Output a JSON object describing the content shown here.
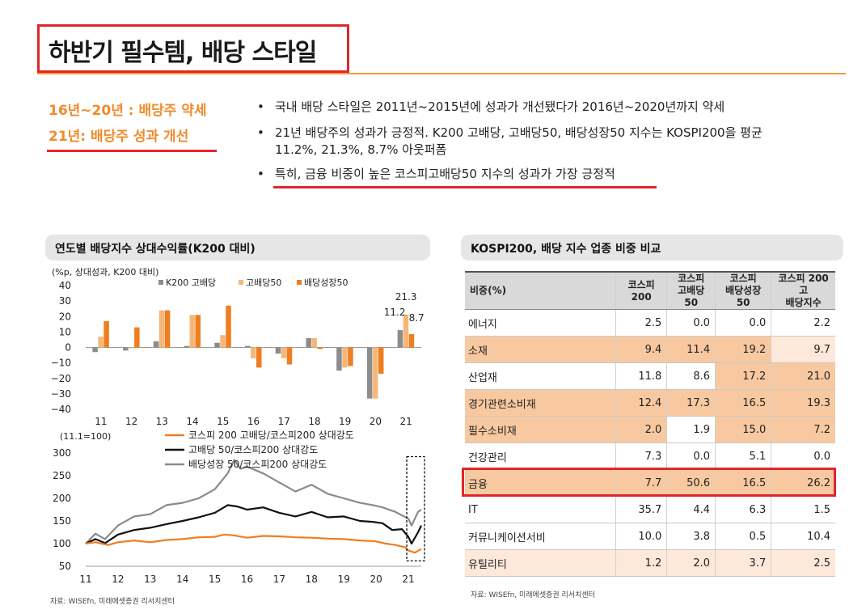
{
  "title": "하반기 필수템, 배당 스타일",
  "side": {
    "line1": "16년~20년 : 배당주 약세",
    "line2": "21년: 배당주 성과 개선"
  },
  "bullets": [
    {
      "text": "국내 배당 스타일은 2011년~2015년에 성과가 개선됐다가 2016년~2020년까지 약세"
    },
    {
      "text": "21년 배당주의 성과가 긍정적. K200 고배당, 고배당50, 배당성장50 지수는 KOSPI200을 평균",
      "text2": "11.2%, 21.3%, 8.7% 아웃퍼폼"
    },
    {
      "text": "특히, 금융 비중이 높은 코스피고배당50 지수의 성과가 가장 긍정적"
    }
  ],
  "left_panel": {
    "title": "연도별 배당지수 상대수익률(K200 대비)",
    "source": "자료: WISEfn, 미래에셋증권 리서치센터"
  },
  "right_panel": {
    "title": "KOSPI200, 배당 지수 업종 비중 비교",
    "source": "자료: WISEfn, 미래에셋증권 리서치센터"
  },
  "colors": {
    "accent_orange": "#f08a2a",
    "red_highlight": "#e0262b",
    "bar_gray": "#8c8c8c",
    "bar_light_orange": "#f6b77a",
    "bar_orange": "#f07d1f",
    "line_black": "#111111",
    "line_gray": "#8a8a8a",
    "cell_orange": "#f8c9a1",
    "cell_light": "#fde8da"
  },
  "chart_data": [
    {
      "type": "bar",
      "ylabel": "(%p, 상대성과, K200 대비)",
      "ylim": [
        -40,
        40
      ],
      "yticks": [
        40,
        30,
        20,
        10,
        0,
        -10,
        -20,
        -30,
        -40
      ],
      "categories": [
        "11",
        "12",
        "13",
        "14",
        "15",
        "16",
        "17",
        "18",
        "19",
        "20",
        "21"
      ],
      "legend_placement": "top",
      "series": [
        {
          "name": "K200 고배당",
          "color": "#8c8c8c",
          "values": [
            -3,
            -2,
            4,
            1,
            3,
            1,
            -4,
            6,
            -15,
            -33,
            11.2
          ]
        },
        {
          "name": "고배당50",
          "color": "#f6b77a",
          "values": [
            7,
            0,
            24,
            21,
            8,
            -7,
            -7,
            6,
            -13,
            -33,
            21.3
          ]
        },
        {
          "name": "배당성장50",
          "color": "#f07d1f",
          "values": [
            17,
            13,
            24,
            21,
            27,
            -13,
            -11,
            -1,
            -12,
            -17,
            8.7
          ]
        }
      ],
      "annotations": [
        "21.3",
        "11.2",
        "8.7"
      ]
    },
    {
      "type": "line",
      "ylabel": "(11.1=100)",
      "ylim": [
        50,
        300
      ],
      "yticks": [
        300,
        250,
        200,
        150,
        100,
        50
      ],
      "x": [
        "11",
        "12",
        "13",
        "14",
        "15",
        "16",
        "17",
        "18",
        "19",
        "20",
        "21"
      ],
      "legend_placement": "top",
      "series": [
        {
          "name": "코스피 200 고배당/코스피200 상대강도",
          "color": "#f07d1f",
          "points": [
            [
              11.0,
              100
            ],
            [
              11.3,
              103
            ],
            [
              11.7,
              97
            ],
            [
              12.0,
              103
            ],
            [
              12.5,
              107
            ],
            [
              13.0,
              103
            ],
            [
              13.5,
              108
            ],
            [
              14.0,
              110
            ],
            [
              14.5,
              114
            ],
            [
              15.0,
              115
            ],
            [
              15.3,
              120
            ],
            [
              15.6,
              118
            ],
            [
              16.0,
              113
            ],
            [
              16.5,
              117
            ],
            [
              17.0,
              116
            ],
            [
              17.5,
              114
            ],
            [
              18.0,
              113
            ],
            [
              18.5,
              111
            ],
            [
              19.0,
              110
            ],
            [
              19.5,
              107
            ],
            [
              20.0,
              105
            ],
            [
              20.3,
              100
            ],
            [
              20.6,
              97
            ],
            [
              20.9,
              92
            ],
            [
              21.0,
              85
            ],
            [
              21.2,
              80
            ],
            [
              21.4,
              88
            ]
          ]
        },
        {
          "name": "고배당 50/코스피200 상대강도",
          "color": "#111111",
          "points": [
            [
              11.0,
              100
            ],
            [
              11.3,
              110
            ],
            [
              11.6,
              101
            ],
            [
              12.0,
              120
            ],
            [
              12.5,
              130
            ],
            [
              13.0,
              135
            ],
            [
              13.5,
              143
            ],
            [
              14.0,
              150
            ],
            [
              14.5,
              158
            ],
            [
              15.0,
              168
            ],
            [
              15.4,
              185
            ],
            [
              15.7,
              182
            ],
            [
              16.0,
              175
            ],
            [
              16.5,
              180
            ],
            [
              17.0,
              168
            ],
            [
              17.5,
              160
            ],
            [
              18.0,
              170
            ],
            [
              18.5,
              158
            ],
            [
              19.0,
              160
            ],
            [
              19.5,
              150
            ],
            [
              19.9,
              148
            ],
            [
              20.2,
              145
            ],
            [
              20.5,
              130
            ],
            [
              20.8,
              132
            ],
            [
              21.0,
              115
            ],
            [
              21.1,
              100
            ],
            [
              21.3,
              125
            ],
            [
              21.4,
              140
            ]
          ]
        },
        {
          "name": "배당성장 50/코스피200 상대강도",
          "color": "#8a8a8a",
          "points": [
            [
              11.0,
              100
            ],
            [
              11.3,
              122
            ],
            [
              11.6,
              110
            ],
            [
              12.0,
              140
            ],
            [
              12.5,
              160
            ],
            [
              13.0,
              165
            ],
            [
              13.5,
              185
            ],
            [
              14.0,
              190
            ],
            [
              14.5,
              200
            ],
            [
              15.0,
              220
            ],
            [
              15.4,
              255
            ],
            [
              15.6,
              285
            ],
            [
              15.8,
              265
            ],
            [
              16.0,
              270
            ],
            [
              16.5,
              255
            ],
            [
              17.0,
              235
            ],
            [
              17.5,
              215
            ],
            [
              18.0,
              230
            ],
            [
              18.5,
              210
            ],
            [
              19.0,
              200
            ],
            [
              19.5,
              190
            ],
            [
              19.9,
              185
            ],
            [
              20.2,
              180
            ],
            [
              20.6,
              170
            ],
            [
              21.0,
              155
            ],
            [
              21.1,
              140
            ],
            [
              21.3,
              170
            ],
            [
              21.4,
              175
            ]
          ]
        }
      ]
    },
    {
      "type": "table",
      "columns": [
        "비중(%)",
        "코스피200",
        "코스피 고배당 50",
        "코스피 배당성장 50",
        "코스피 200 고 배당지수"
      ],
      "rows": [
        {
          "name": "에너지",
          "values": [
            "2.5",
            "0.0",
            "0.0",
            "2.2"
          ],
          "shade": [
            "none",
            "none",
            "none",
            "none"
          ]
        },
        {
          "name": "소재",
          "values": [
            "9.4",
            "11.4",
            "19.2",
            "9.7"
          ],
          "shade": [
            "orange",
            "orange",
            "orange",
            "light"
          ]
        },
        {
          "name": "산업재",
          "values": [
            "11.8",
            "8.6",
            "17.2",
            "21.0"
          ],
          "shade": [
            "none",
            "none",
            "orange",
            "orange"
          ]
        },
        {
          "name": "경기관련소비재",
          "values": [
            "12.4",
            "17.3",
            "16.5",
            "19.3"
          ],
          "shade": [
            "orange",
            "orange",
            "orange",
            "orange"
          ]
        },
        {
          "name": "필수소비재",
          "values": [
            "2.0",
            "1.9",
            "15.0",
            "7.2"
          ],
          "shade": [
            "orange",
            "none",
            "orange",
            "orange"
          ]
        },
        {
          "name": "건강관리",
          "values": [
            "7.3",
            "0.0",
            "5.1",
            "0.0"
          ],
          "shade": [
            "none",
            "none",
            "none",
            "none"
          ]
        },
        {
          "name": "금융",
          "values": [
            "7.7",
            "50.6",
            "16.5",
            "26.2"
          ],
          "shade": [
            "orange",
            "orange",
            "orange",
            "orange"
          ]
        },
        {
          "name": "IT",
          "values": [
            "35.7",
            "4.4",
            "6.3",
            "1.5"
          ],
          "shade": [
            "none",
            "none",
            "none",
            "none"
          ]
        },
        {
          "name": "커뮤니케이션서비",
          "values": [
            "10.0",
            "3.8",
            "0.5",
            "10.4"
          ],
          "shade": [
            "none",
            "none",
            "none",
            "none"
          ]
        },
        {
          "name": "유틸리티",
          "values": [
            "1.2",
            "2.0",
            "3.7",
            "2.5"
          ],
          "shade": [
            "light",
            "light",
            "light",
            "light"
          ]
        }
      ]
    }
  ]
}
